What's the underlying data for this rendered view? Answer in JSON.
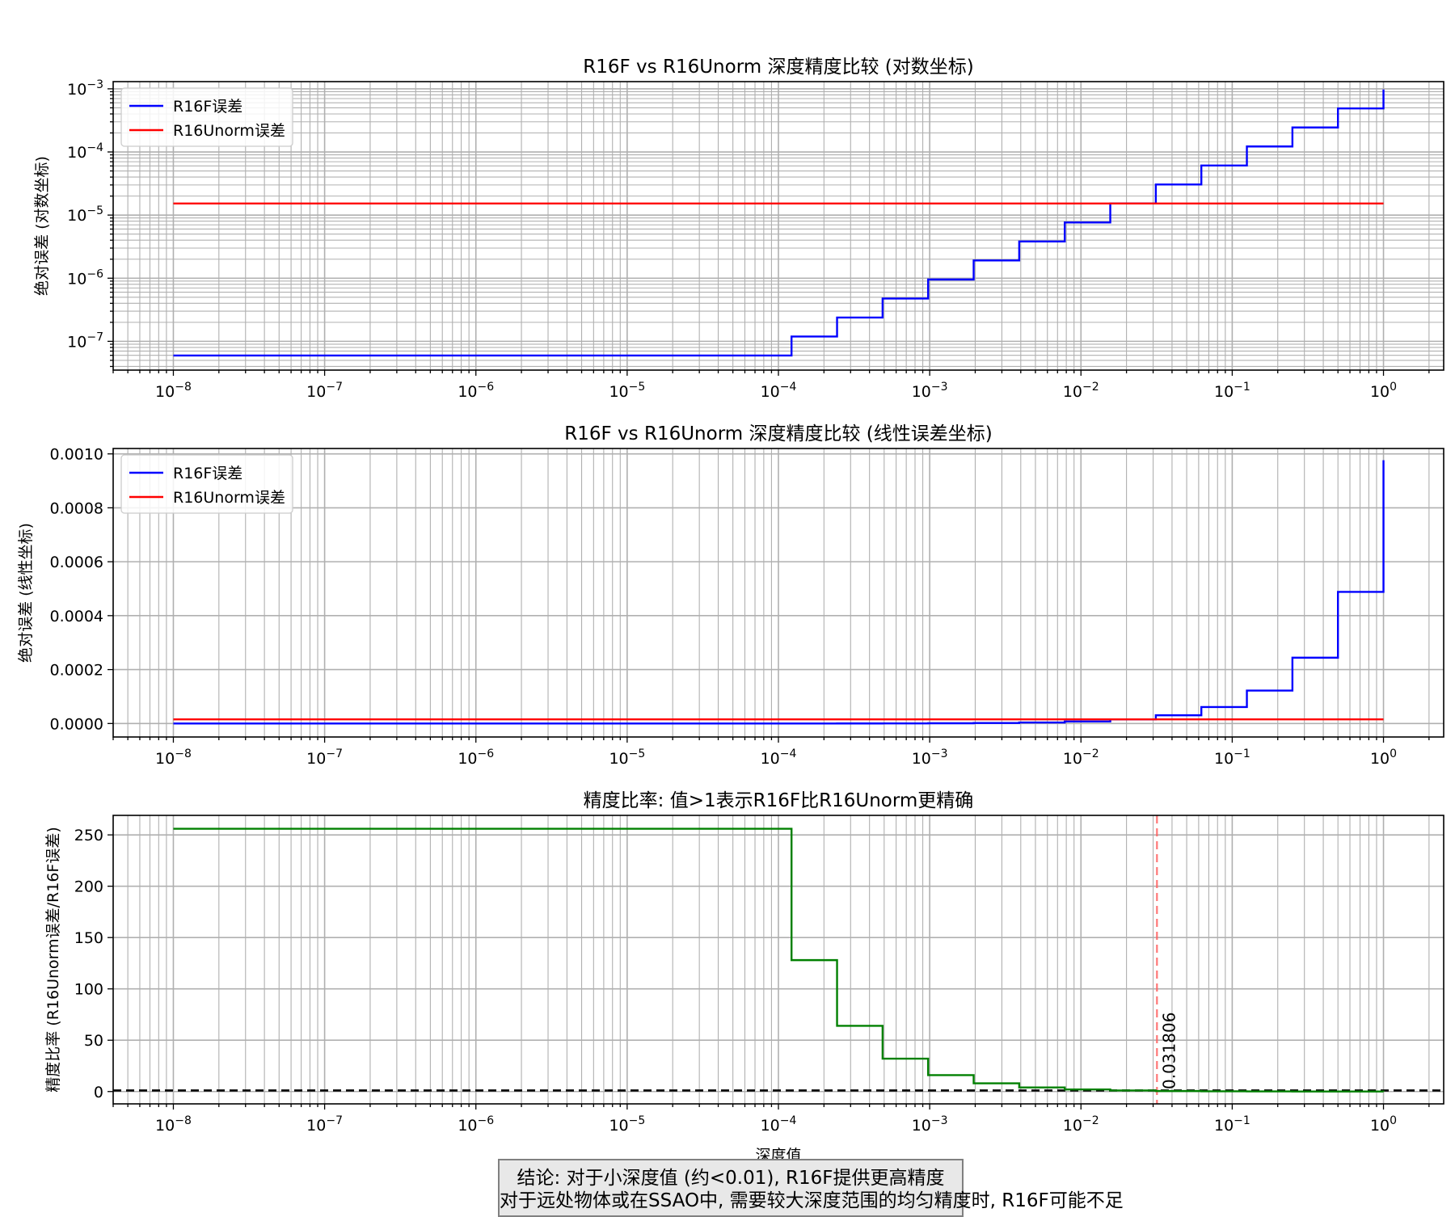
{
  "chart_data": [
    {
      "type": "line",
      "title": "R16F vs R16Unorm 深度精度比较 (对数坐标)",
      "ylabel": "绝对误差 (对数坐标)",
      "xscale": "log",
      "yscale": "log",
      "xlim": [
        4e-09,
        2.5
      ],
      "ylim": [
        3.5e-08,
        0.0013
      ],
      "x_ticks": [
        "10^-8",
        "10^-7",
        "10^-6",
        "10^-5",
        "10^-4",
        "10^-3",
        "10^-2",
        "10^-1",
        "10^0"
      ],
      "y_ticks": [
        "10^-7",
        "10^-6",
        "10^-5",
        "10^-4",
        "10^-3"
      ],
      "grid": "major and minor",
      "legend": "top-left",
      "series": [
        {
          "name": "R16F误差",
          "color": "#0000ff",
          "kind": "step",
          "x": [
            1e-08,
            0.00012207,
            0.00024414,
            0.00048828,
            0.00097656,
            0.0019531,
            0.0039063,
            0.0078125,
            0.015625,
            0.03125,
            0.0625,
            0.125,
            0.25,
            0.5,
            1.0
          ],
          "y": [
            5.96e-08,
            1.192e-07,
            2.384e-07,
            4.768e-07,
            9.537e-07,
            1.907e-06,
            3.815e-06,
            7.629e-06,
            1.526e-05,
            3.052e-05,
            6.104e-05,
            0.0001221,
            0.0002441,
            0.0004883,
            0.0009766
          ]
        },
        {
          "name": "R16Unorm误差",
          "color": "#ff0000",
          "kind": "constant",
          "x": [
            1e-08,
            1.0
          ],
          "y": [
            1.526e-05,
            1.526e-05
          ]
        }
      ]
    },
    {
      "type": "line",
      "title": "R16F vs R16Unorm 深度精度比较 (线性误差坐标)",
      "ylabel": "绝对误差 (线性坐标)",
      "xscale": "log",
      "yscale": "linear",
      "xlim": [
        4e-09,
        2.5
      ],
      "ylim": [
        -5e-05,
        0.00102
      ],
      "x_ticks": [
        "10^-8",
        "10^-7",
        "10^-6",
        "10^-5",
        "10^-4",
        "10^-3",
        "10^-2",
        "10^-1",
        "10^0"
      ],
      "y_ticks": [
        "0.0000",
        "0.0002",
        "0.0004",
        "0.0006",
        "0.0008",
        "0.0010"
      ],
      "grid": "major and minor",
      "legend": "top-left",
      "series": [
        {
          "name": "R16F误差",
          "color": "#0000ff",
          "kind": "step",
          "x": [
            1e-08,
            0.00012207,
            0.00024414,
            0.00048828,
            0.00097656,
            0.0019531,
            0.0039063,
            0.0078125,
            0.015625,
            0.03125,
            0.0625,
            0.125,
            0.25,
            0.5,
            1.0
          ],
          "y": [
            5.96e-08,
            1.192e-07,
            2.384e-07,
            4.768e-07,
            9.537e-07,
            1.907e-06,
            3.815e-06,
            7.629e-06,
            1.526e-05,
            3.052e-05,
            6.104e-05,
            0.0001221,
            0.0002441,
            0.0004883,
            0.0009766
          ]
        },
        {
          "name": "R16Unorm误差",
          "color": "#ff0000",
          "kind": "constant",
          "x": [
            1e-08,
            1.0
          ],
          "y": [
            1.526e-05,
            1.526e-05
          ]
        }
      ]
    },
    {
      "type": "line",
      "title": "精度比率: 值>1表示R16F比R16Unorm更精确",
      "xlabel": "深度值",
      "ylabel": "精度比率 (R16Unorm误差/R16F误差)",
      "xscale": "log",
      "yscale": "linear",
      "xlim": [
        4e-09,
        2.5
      ],
      "ylim": [
        -12,
        269
      ],
      "x_ticks": [
        "10^-8",
        "10^-7",
        "10^-6",
        "10^-5",
        "10^-4",
        "10^-3",
        "10^-2",
        "10^-1",
        "10^0"
      ],
      "y_ticks": [
        0,
        50,
        100,
        150,
        200,
        250
      ],
      "grid": "major and minor",
      "reference_line_y": 1,
      "crossover_x": 0.031806,
      "crossover_label": "0.031806",
      "series": [
        {
          "color": "#008000",
          "kind": "step",
          "x": [
            1e-08,
            0.00012207,
            0.00024414,
            0.00048828,
            0.00097656,
            0.0019531,
            0.0039063,
            0.0078125,
            0.015625,
            0.03125,
            0.0625,
            0.125,
            0.25,
            0.5,
            1.0
          ],
          "y": [
            256,
            128,
            64,
            32,
            16,
            8,
            4,
            2,
            1,
            0.5,
            0.25,
            0.125,
            0.0625,
            0.03125,
            0.015625
          ]
        }
      ]
    }
  ],
  "conclusion": {
    "line1": "结论: 对于小深度值 (约<0.01), R16F提供更高精度",
    "line2": "对于远处物体或在SSAO中, 需要较大深度范围的均匀精度时, R16F可能不足"
  }
}
